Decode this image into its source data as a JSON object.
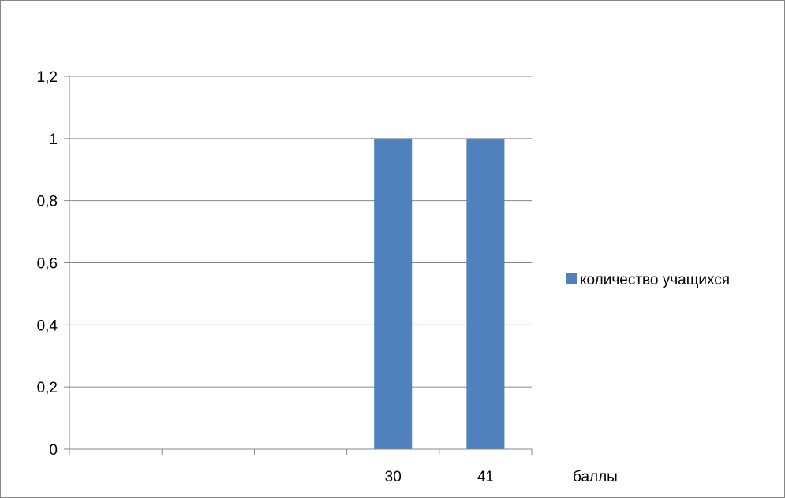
{
  "chart_data": {
    "type": "bar",
    "categories": [
      "",
      "",
      "",
      "30",
      "41"
    ],
    "series": [
      {
        "name": "количество учащихся",
        "values": [
          null,
          null,
          null,
          1,
          1
        ],
        "color": "#4F81BD"
      }
    ],
    "title": "",
    "xlabel": "баллы",
    "ylabel": "",
    "ylim": [
      0,
      1.2
    ],
    "yticks": [
      0,
      0.2,
      0.4,
      0.6,
      0.8,
      1,
      1.2
    ],
    "ytick_labels": [
      "0",
      "0,2",
      "0,4",
      "0,6",
      "0,8",
      "1",
      "1,2"
    ],
    "grid": true,
    "legend_position": "right"
  }
}
